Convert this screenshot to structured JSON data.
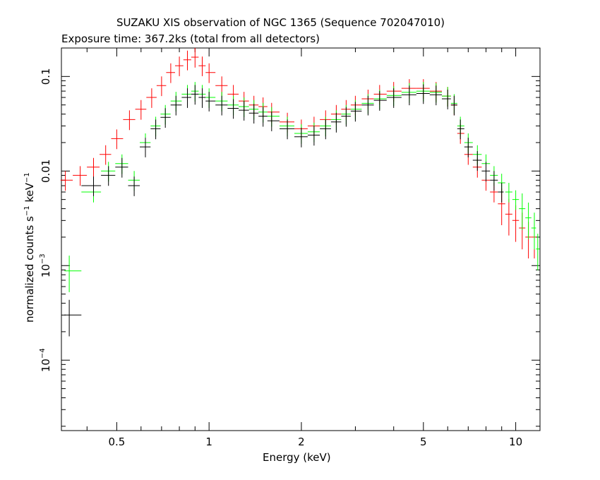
{
  "chart_data": {
    "type": "scatter",
    "title": "SUZAKU XIS observation of NGC 1365 (Sequence 702047010)",
    "subtitle": "Exposure time: 367.2ks (total from all detectors)",
    "xlabel": "Energy (keV)",
    "ylabel": {
      "text": "normalized counts s",
      "exp1": "−1",
      "mid": " keV",
      "exp2": "−1"
    },
    "x_scale": "log",
    "y_scale": "log",
    "xlim": [
      0.33,
      12.0
    ],
    "ylim": [
      1.8e-05,
      0.2
    ],
    "x_ticks": [
      {
        "value": 0.5,
        "label": "0.5"
      },
      {
        "value": 1,
        "label": "1"
      },
      {
        "value": 2,
        "label": "2"
      },
      {
        "value": 5,
        "label": "5"
      },
      {
        "value": 10,
        "label": "10"
      }
    ],
    "y_ticks": [
      {
        "value": 0.1,
        "label": "0.1"
      },
      {
        "value": 0.01,
        "label": "0.01"
      },
      {
        "value": 0.001,
        "label": "10",
        "exp": "−3"
      },
      {
        "value": 0.0001,
        "label": "10",
        "exp": "−4"
      }
    ],
    "grid": false,
    "series": [
      {
        "color": "#ff0000",
        "x": [
          0.34,
          0.38,
          0.42,
          0.46,
          0.5,
          0.55,
          0.6,
          0.65,
          0.7,
          0.75,
          0.8,
          0.85,
          0.9,
          0.95,
          1.0,
          1.1,
          1.2,
          1.3,
          1.4,
          1.5,
          1.6,
          1.8,
          2.0,
          2.2,
          2.4,
          2.6,
          2.8,
          3.0,
          3.3,
          3.6,
          4.0,
          4.5,
          5.0,
          5.5,
          6.0,
          6.3,
          6.6,
          7.0,
          7.5,
          8.0,
          8.5,
          9.0,
          9.5,
          10.0,
          10.5,
          11.0,
          11.5
        ],
        "y": [
          0.008,
          0.009,
          0.011,
          0.015,
          0.022,
          0.035,
          0.045,
          0.06,
          0.08,
          0.11,
          0.13,
          0.15,
          0.16,
          0.13,
          0.11,
          0.08,
          0.065,
          0.055,
          0.05,
          0.048,
          0.042,
          0.033,
          0.028,
          0.03,
          0.035,
          0.04,
          0.045,
          0.05,
          0.058,
          0.065,
          0.07,
          0.075,
          0.075,
          0.07,
          0.062,
          0.05,
          0.025,
          0.015,
          0.011,
          0.008,
          0.006,
          0.0045,
          0.0035,
          0.003,
          0.0025,
          0.002,
          0.002
        ]
      },
      {
        "color": "#00ff00",
        "x": [
          0.35,
          0.42,
          0.47,
          0.52,
          0.57,
          0.62,
          0.67,
          0.72,
          0.78,
          0.85,
          0.9,
          0.95,
          1.0,
          1.1,
          1.2,
          1.3,
          1.4,
          1.5,
          1.6,
          1.8,
          2.0,
          2.2,
          2.4,
          2.6,
          2.8,
          3.0,
          3.3,
          3.6,
          4.0,
          4.5,
          5.0,
          5.5,
          6.0,
          6.3,
          6.6,
          7.0,
          7.5,
          8.0,
          8.5,
          9.0,
          9.5,
          10.0,
          10.5,
          11.0,
          11.5,
          11.8
        ],
        "y": [
          0.00088,
          0.006,
          0.01,
          0.012,
          0.008,
          0.02,
          0.03,
          0.04,
          0.055,
          0.065,
          0.07,
          0.065,
          0.06,
          0.055,
          0.05,
          0.048,
          0.045,
          0.042,
          0.038,
          0.03,
          0.025,
          0.026,
          0.03,
          0.035,
          0.04,
          0.045,
          0.052,
          0.058,
          0.063,
          0.068,
          0.07,
          0.068,
          0.062,
          0.052,
          0.03,
          0.02,
          0.015,
          0.012,
          0.009,
          0.0075,
          0.006,
          0.005,
          0.004,
          0.0032,
          0.0025,
          0.0015
        ]
      },
      {
        "color": "#000000",
        "x": [
          0.35,
          0.42,
          0.47,
          0.52,
          0.57,
          0.62,
          0.67,
          0.72,
          0.78,
          0.85,
          0.9,
          0.95,
          1.0,
          1.1,
          1.2,
          1.3,
          1.4,
          1.5,
          1.6,
          1.8,
          2.0,
          2.2,
          2.4,
          2.6,
          2.8,
          3.0,
          3.3,
          3.6,
          4.0,
          4.5,
          5.0,
          5.5,
          6.0,
          6.3,
          6.6,
          7.0,
          7.5,
          8.0,
          8.5,
          9.0
        ],
        "y": [
          0.0003,
          0.007,
          0.009,
          0.011,
          0.007,
          0.018,
          0.028,
          0.037,
          0.05,
          0.06,
          0.065,
          0.06,
          0.055,
          0.05,
          0.046,
          0.044,
          0.041,
          0.038,
          0.034,
          0.028,
          0.023,
          0.024,
          0.028,
          0.033,
          0.038,
          0.043,
          0.05,
          0.056,
          0.06,
          0.064,
          0.066,
          0.064,
          0.058,
          0.05,
          0.028,
          0.018,
          0.013,
          0.01,
          0.008,
          0.006
        ]
      }
    ]
  }
}
